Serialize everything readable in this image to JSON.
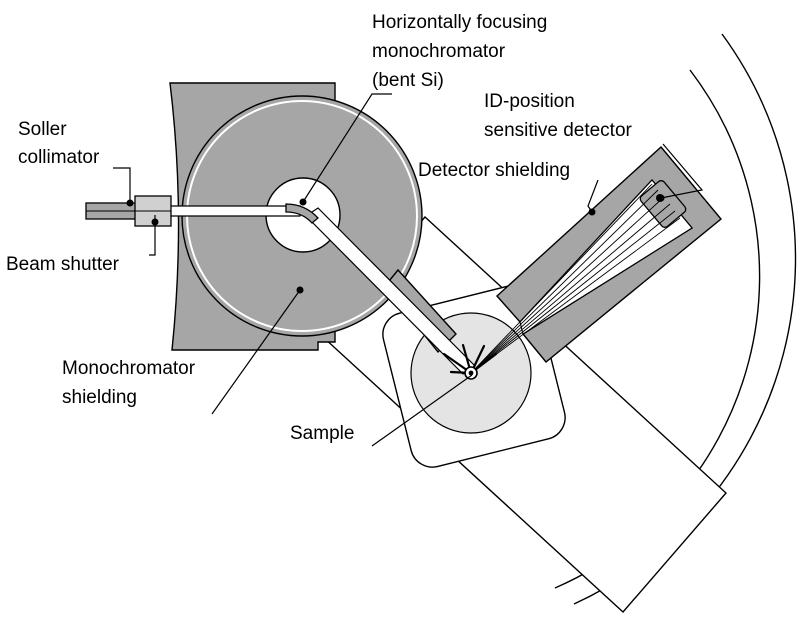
{
  "labels": {
    "soller_line1": "Soller",
    "soller_line2": "collimator",
    "beam_shutter": "Beam shutter",
    "mono_line1": "Horizontally focusing",
    "mono_line2": "monochromator",
    "mono_line3": "(bent Si)",
    "psd_line1": "ID-position",
    "psd_line2": "sensitive detector",
    "detector_shielding": "Detector shielding",
    "mono_shield_line1": "Monochromator",
    "mono_shield_line2": "shielding",
    "sample": "Sample"
  },
  "colors": {
    "shield_dark": "#a6a6a6",
    "shield_light": "#e4e4e4",
    "outline": "#000000",
    "background": "#ffffff"
  }
}
